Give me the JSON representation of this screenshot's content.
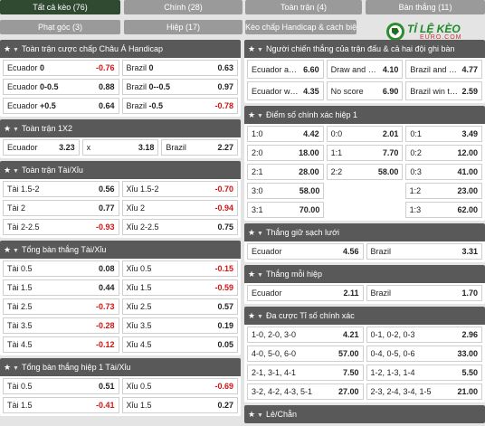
{
  "tabs": [
    {
      "label": "Tất cả kèo (76)",
      "active": true
    },
    {
      "label": "Chính (28)"
    },
    {
      "label": "Toàn trận (4)"
    },
    {
      "label": "Bàn thắng (11)"
    },
    {
      "label": "Phạt góc (3)"
    },
    {
      "label": "Hiệp (17)"
    },
    {
      "label": "Kèo chấp Handicap & cách biệt (3)"
    }
  ],
  "logo": {
    "text": "TỈ LỆ KÈO",
    "sub": "EURO.COM"
  },
  "left": [
    {
      "title": "Toàn trận cược chấp Châu Á Handicap",
      "rows": [
        [
          {
            "l": "Ecuador",
            "b": "0",
            "v": "-0.76",
            "neg": true
          },
          {
            "l": "Brazil",
            "b": "0",
            "v": "0.63"
          }
        ],
        [
          {
            "l": "Ecuador",
            "b": "0-0.5",
            "v": "0.88"
          },
          {
            "l": "Brazil",
            "b": "0--0.5",
            "v": "0.97"
          }
        ],
        [
          {
            "l": "Ecuador",
            "b": "+0.5",
            "v": "0.64"
          },
          {
            "l": "Brazil",
            "b": "-0.5",
            "v": "-0.78",
            "neg": true
          }
        ]
      ]
    },
    {
      "title": "Toàn trận 1X2",
      "rows": [
        [
          {
            "l": "Ecuador",
            "v": "3.23"
          },
          {
            "l": "x",
            "v": "3.18"
          },
          {
            "l": "Brazil",
            "v": "2.27"
          }
        ]
      ]
    },
    {
      "title": "Toàn trận Tài/Xỉu",
      "rows": [
        [
          {
            "l": "Tài 1.5-2",
            "v": "0.56"
          },
          {
            "l": "Xỉu 1.5-2",
            "v": "-0.70",
            "neg": true
          }
        ],
        [
          {
            "l": "Tài 2",
            "v": "0.77"
          },
          {
            "l": "Xỉu 2",
            "v": "-0.94",
            "neg": true
          }
        ],
        [
          {
            "l": "Tài 2-2.5",
            "v": "-0.93",
            "neg": true
          },
          {
            "l": "Xỉu 2-2.5",
            "v": "0.75"
          }
        ]
      ]
    },
    {
      "title": "Tổng bàn thắng Tài/Xỉu",
      "rows": [
        [
          {
            "l": "Tài 0.5",
            "v": "0.08"
          },
          {
            "l": "Xỉu 0.5",
            "v": "-0.15",
            "neg": true
          }
        ],
        [
          {
            "l": "Tài 1.5",
            "v": "0.44"
          },
          {
            "l": "Xỉu 1.5",
            "v": "-0.59",
            "neg": true
          }
        ],
        [
          {
            "l": "Tài 2.5",
            "v": "-0.73",
            "neg": true
          },
          {
            "l": "Xỉu 2.5",
            "v": "0.57"
          }
        ],
        [
          {
            "l": "Tài 3.5",
            "v": "-0.28",
            "neg": true
          },
          {
            "l": "Xỉu 3.5",
            "v": "0.19"
          }
        ],
        [
          {
            "l": "Tài 4.5",
            "v": "-0.12",
            "neg": true
          },
          {
            "l": "Xỉu 4.5",
            "v": "0.05"
          }
        ]
      ]
    },
    {
      "title": "Tổng bàn thắng hiệp 1 Tài/Xỉu",
      "rows": [
        [
          {
            "l": "Tài 0.5",
            "v": "0.51"
          },
          {
            "l": "Xỉu 0.5",
            "v": "-0.69",
            "neg": true
          }
        ],
        [
          {
            "l": "Tài 1.5",
            "v": "-0.41",
            "neg": true
          },
          {
            "l": "Xỉu 1.5",
            "v": "0.27"
          }
        ]
      ]
    }
  ],
  "right": [
    {
      "title": "Người chiến thắng của trận đấu & cả hai đội ghi bàn",
      "tall": true,
      "rows": [
        [
          {
            "l": "Ecuador and ...",
            "v": "6.60"
          },
          {
            "l": "Draw and bot...",
            "v": "4.10"
          },
          {
            "l": "Brazil and bot...",
            "v": "4.77"
          }
        ],
        [
          {
            "l": "Ecuador win t...",
            "v": "4.35"
          },
          {
            "l": "No score",
            "v": "6.90"
          },
          {
            "l": "Brazil win to nil",
            "v": "2.59"
          }
        ]
      ]
    },
    {
      "title": "Điểm số chính xác hiệp 1",
      "rows": [
        [
          {
            "l": "1:0",
            "v": "4.42"
          },
          {
            "l": "0:0",
            "v": "2.01"
          },
          {
            "l": "0:1",
            "v": "3.49"
          }
        ],
        [
          {
            "l": "2:0",
            "v": "18.00"
          },
          {
            "l": "1:1",
            "v": "7.70"
          },
          {
            "l": "0:2",
            "v": "12.00"
          }
        ],
        [
          {
            "l": "2:1",
            "v": "28.00"
          },
          {
            "l": "2:2",
            "v": "58.00"
          },
          {
            "l": "0:3",
            "v": "41.00"
          }
        ],
        [
          {
            "l": "3:0",
            "v": "58.00"
          },
          {
            "empty": true
          },
          {
            "l": "1:2",
            "v": "23.00"
          }
        ],
        [
          {
            "l": "3:1",
            "v": "70.00"
          },
          {
            "empty": true
          },
          {
            "l": "1:3",
            "v": "62.00"
          }
        ]
      ]
    },
    {
      "title": "Thắng giữ sạch lưới",
      "rows": [
        [
          {
            "l": "Ecuador",
            "v": "4.56"
          },
          {
            "l": "Brazil",
            "v": "3.31"
          }
        ]
      ]
    },
    {
      "title": "Thắng mỗi hiệp",
      "rows": [
        [
          {
            "l": "Ecuador",
            "v": "2.11"
          },
          {
            "l": "Brazil",
            "v": "1.70"
          }
        ]
      ]
    },
    {
      "title": "Đa cược Tỉ số chính xác",
      "rows": [
        [
          {
            "l": "1-0, 2-0, 3-0",
            "v": "4.21"
          },
          {
            "l": "0-1, 0-2, 0-3",
            "v": "2.96"
          }
        ],
        [
          {
            "l": "4-0, 5-0, 6-0",
            "v": "57.00"
          },
          {
            "l": "0-4, 0-5, 0-6",
            "v": "33.00"
          }
        ],
        [
          {
            "l": "2-1, 3-1, 4-1",
            "v": "7.50"
          },
          {
            "l": "1-2, 1-3, 1-4",
            "v": "5.50"
          }
        ],
        [
          {
            "l": "3-2, 4-2, 4-3, 5-1",
            "v": "27.00"
          },
          {
            "l": "2-3, 2-4, 3-4, 1-5",
            "v": "21.00"
          }
        ]
      ]
    },
    {
      "title": "Lẻ/Chẵn",
      "rows": []
    }
  ]
}
